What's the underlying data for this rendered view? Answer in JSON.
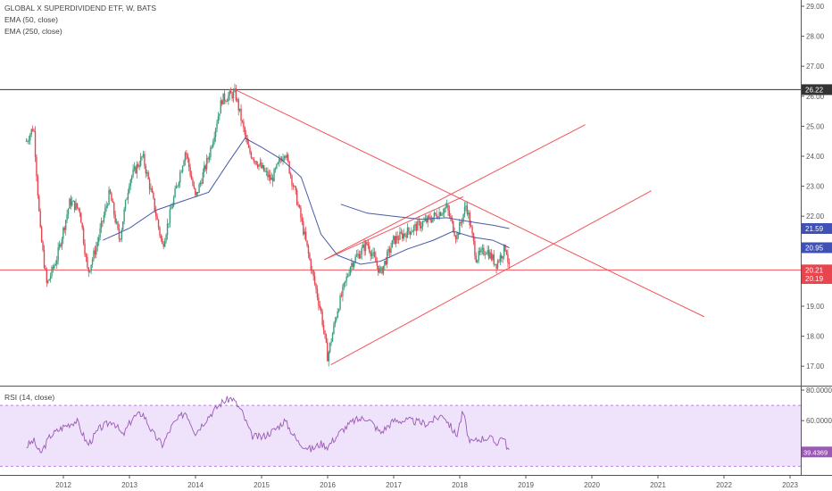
{
  "legend": {
    "title": "GLOBAL X SUPERDIVIDEND ETF, W, BATS",
    "ema50": "EMA (50, close)",
    "ema250": "EMA (250, close)",
    "rsi": "RSI (14, close)"
  },
  "colors": {
    "up": "#3a9e7c",
    "down": "#e8454f",
    "ema50": "#4a5aa8",
    "ema250": "#4a5aa8",
    "trendline": "#f2545b",
    "hline_top": "#333333",
    "rsi_line": "#9b59b6",
    "rsi_band": "#efe2fb"
  },
  "chart_data": [
    {
      "type": "candlestick",
      "title": "GLOBAL X SUPERDIVIDEND ETF, W, BATS",
      "x_ticks": [
        "2012",
        "2013",
        "2014",
        "2015",
        "2016",
        "2017",
        "2018",
        "2019",
        "2020",
        "2021",
        "2022",
        "2023"
      ],
      "y_ticks": [
        "17.00",
        "18.00",
        "19.00",
        "20.00",
        "21.00",
        "22.00",
        "23.00",
        "24.00",
        "25.00",
        "26.00",
        "27.00",
        "28.00",
        "29.00"
      ],
      "ylim": [
        16.8,
        29.2
      ],
      "xlim": [
        2011.0,
        2023.0
      ],
      "price_anchors": [
        [
          2011.44,
          24.5
        ],
        [
          2011.55,
          25.0
        ],
        [
          2011.65,
          21.5
        ],
        [
          2011.75,
          19.7
        ],
        [
          2011.9,
          20.6
        ],
        [
          2012.1,
          22.5
        ],
        [
          2012.25,
          22.2
        ],
        [
          2012.37,
          20.1
        ],
        [
          2012.5,
          21.0
        ],
        [
          2012.7,
          22.8
        ],
        [
          2012.85,
          21.2
        ],
        [
          2013.0,
          23.2
        ],
        [
          2013.2,
          24.0
        ],
        [
          2013.35,
          22.6
        ],
        [
          2013.5,
          21.0
        ],
        [
          2013.65,
          22.4
        ],
        [
          2013.85,
          24.2
        ],
        [
          2014.0,
          22.6
        ],
        [
          2014.2,
          24.0
        ],
        [
          2014.4,
          25.9
        ],
        [
          2014.6,
          26.1
        ],
        [
          2014.8,
          24.2
        ],
        [
          2015.0,
          23.6
        ],
        [
          2015.15,
          23.2
        ],
        [
          2015.35,
          24.2
        ],
        [
          2015.55,
          22.4
        ],
        [
          2015.75,
          20.3
        ],
        [
          2015.9,
          18.8
        ],
        [
          2016.0,
          17.3
        ],
        [
          2016.15,
          18.9
        ],
        [
          2016.35,
          20.4
        ],
        [
          2016.6,
          21.1
        ],
        [
          2016.8,
          20.1
        ],
        [
          2017.0,
          21.2
        ],
        [
          2017.3,
          21.6
        ],
        [
          2017.55,
          21.9
        ],
        [
          2017.8,
          22.3
        ],
        [
          2017.95,
          21.3
        ],
        [
          2018.1,
          22.4
        ],
        [
          2018.25,
          20.6
        ],
        [
          2018.4,
          20.9
        ],
        [
          2018.55,
          20.4
        ],
        [
          2018.7,
          21.0
        ],
        [
          2018.75,
          20.2
        ]
      ],
      "ema50_anchors": [
        [
          2012.6,
          21.2
        ],
        [
          2013.0,
          21.6
        ],
        [
          2013.4,
          22.2
        ],
        [
          2013.8,
          22.5
        ],
        [
          2014.2,
          22.8
        ],
        [
          2014.5,
          23.8
        ],
        [
          2014.75,
          24.6
        ],
        [
          2015.0,
          24.3
        ],
        [
          2015.3,
          23.9
        ],
        [
          2015.6,
          23.3
        ],
        [
          2015.9,
          21.4
        ],
        [
          2016.15,
          20.7
        ],
        [
          2016.5,
          20.4
        ],
        [
          2016.8,
          20.5
        ],
        [
          2017.2,
          20.9
        ],
        [
          2017.6,
          21.2
        ],
        [
          2017.9,
          21.5
        ],
        [
          2018.2,
          21.3
        ],
        [
          2018.5,
          21.2
        ],
        [
          2018.75,
          20.95
        ]
      ],
      "ema250_anchors": [
        [
          2016.2,
          22.4
        ],
        [
          2016.6,
          22.1
        ],
        [
          2017.0,
          22.0
        ],
        [
          2017.4,
          21.9
        ],
        [
          2017.8,
          21.95
        ],
        [
          2018.2,
          21.8
        ],
        [
          2018.5,
          21.7
        ],
        [
          2018.75,
          21.59
        ]
      ],
      "horizontal_lines": [
        {
          "value": 26.22,
          "label": "26.22"
        },
        {
          "value": 20.21,
          "label": "20.21"
        }
      ],
      "price_labels": [
        {
          "value": 21.59,
          "label": "21.59"
        },
        {
          "value": 20.95,
          "label": "20.95"
        },
        {
          "value": 20.19,
          "label": "20.19"
        }
      ],
      "trendlines": [
        [
          [
            2014.6,
            26.22
          ],
          [
            2021.7,
            18.65
          ]
        ],
        [
          [
            2016.05,
            17.05
          ],
          [
            2020.9,
            22.85
          ]
        ],
        [
          [
            2015.95,
            20.55
          ],
          [
            2019.9,
            25.05
          ]
        ],
        [
          [
            2015.95,
            20.55
          ],
          [
            2018.05,
            22.65
          ]
        ]
      ]
    },
    {
      "type": "line",
      "title": "RSI (14, close)",
      "y_ticks": [
        "60.0000",
        "80.0000"
      ],
      "ylim": [
        32,
        80
      ],
      "band": [
        30,
        70
      ],
      "last_value": "39.4369",
      "rsi_anchors": [
        [
          2011.44,
          43
        ],
        [
          2011.55,
          47
        ],
        [
          2011.65,
          38
        ],
        [
          2011.8,
          50
        ],
        [
          2012.0,
          56
        ],
        [
          2012.2,
          60
        ],
        [
          2012.37,
          44
        ],
        [
          2012.55,
          55
        ],
        [
          2012.75,
          60
        ],
        [
          2012.9,
          50
        ],
        [
          2013.05,
          62
        ],
        [
          2013.2,
          65
        ],
        [
          2013.35,
          52
        ],
        [
          2013.5,
          44
        ],
        [
          2013.65,
          57
        ],
        [
          2013.85,
          66
        ],
        [
          2014.0,
          52
        ],
        [
          2014.2,
          63
        ],
        [
          2014.4,
          72
        ],
        [
          2014.55,
          75
        ],
        [
          2014.7,
          66
        ],
        [
          2014.85,
          50
        ],
        [
          2015.0,
          49
        ],
        [
          2015.2,
          54
        ],
        [
          2015.35,
          60
        ],
        [
          2015.55,
          46
        ],
        [
          2015.75,
          41
        ],
        [
          2015.9,
          45
        ],
        [
          2016.0,
          43
        ],
        [
          2016.2,
          53
        ],
        [
          2016.4,
          60
        ],
        [
          2016.6,
          62
        ],
        [
          2016.8,
          52
        ],
        [
          2017.0,
          60
        ],
        [
          2017.25,
          60
        ],
        [
          2017.5,
          58
        ],
        [
          2017.75,
          64
        ],
        [
          2017.95,
          50
        ],
        [
          2018.05,
          66
        ],
        [
          2018.15,
          45
        ],
        [
          2018.3,
          48
        ],
        [
          2018.45,
          49
        ],
        [
          2018.55,
          45
        ],
        [
          2018.65,
          50
        ],
        [
          2018.75,
          39.4
        ]
      ]
    }
  ]
}
